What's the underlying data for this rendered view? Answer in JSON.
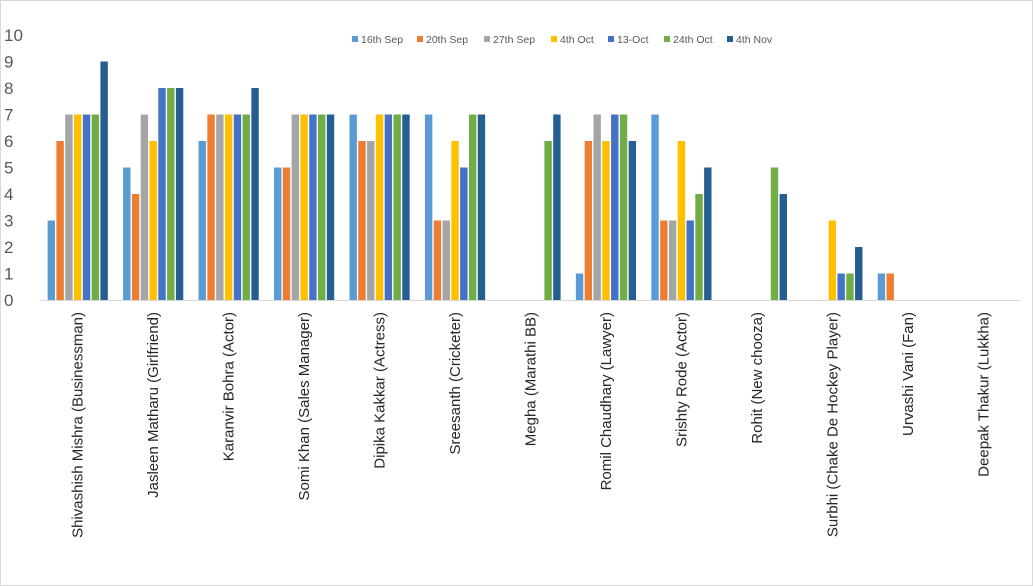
{
  "chart_data": {
    "type": "bar",
    "title": "",
    "xlabel": "",
    "ylabel": "",
    "ylim": [
      0,
      10
    ],
    "yticks": [
      0,
      1,
      2,
      3,
      4,
      5,
      6,
      7,
      8,
      9,
      10
    ],
    "grid": false,
    "legend_position": "top-right",
    "categories": [
      "Shivashish Mishra (Businessman)",
      "Jasleen Matharu (Girlfriend)",
      "Karanvir Bohra (Actor)",
      "Somi Khan (Sales Manager)",
      "Dipika Kakkar (Actress)",
      "Sreesanth (Cricketer)",
      "Megha (Marathi BB)",
      "Romil Chaudhary (Lawyer)",
      "Srishty Rode (Actor)",
      "Rohit (New chooza)",
      "Surbhi (Chake De Hockey Player)",
      "Urvashi Vani (Fan)",
      "Deepak Thakur (Lukkha)"
    ],
    "series": [
      {
        "name": "16th Sep",
        "color": "#5b9bd5",
        "values": [
          3,
          5,
          6,
          5,
          7,
          7,
          0,
          1,
          7,
          0,
          0,
          1,
          0
        ]
      },
      {
        "name": "20th Sep",
        "color": "#ed7d31",
        "values": [
          6,
          4,
          7,
          5,
          6,
          3,
          0,
          6,
          3,
          0,
          0,
          1,
          0
        ]
      },
      {
        "name": "27th Sep",
        "color": "#a5a5a5",
        "values": [
          7,
          7,
          7,
          7,
          6,
          3,
          0,
          7,
          3,
          0,
          0,
          0,
          0
        ]
      },
      {
        "name": "4th Oct",
        "color": "#ffc000",
        "values": [
          7,
          6,
          7,
          7,
          7,
          6,
          0,
          6,
          6,
          0,
          3,
          0,
          0
        ]
      },
      {
        "name": "13-Oct",
        "color": "#4472c4",
        "values": [
          7,
          8,
          7,
          7,
          7,
          5,
          0,
          7,
          3,
          0,
          1,
          0,
          0
        ]
      },
      {
        "name": "24th Oct",
        "color": "#70ad47",
        "values": [
          7,
          8,
          7,
          7,
          7,
          7,
          6,
          7,
          4,
          5,
          1,
          0,
          0
        ]
      },
      {
        "name": "4th Nov",
        "color": "#255e91",
        "values": [
          9,
          8,
          8,
          7,
          7,
          7,
          7,
          6,
          5,
          4,
          2,
          0,
          0
        ]
      }
    ]
  }
}
